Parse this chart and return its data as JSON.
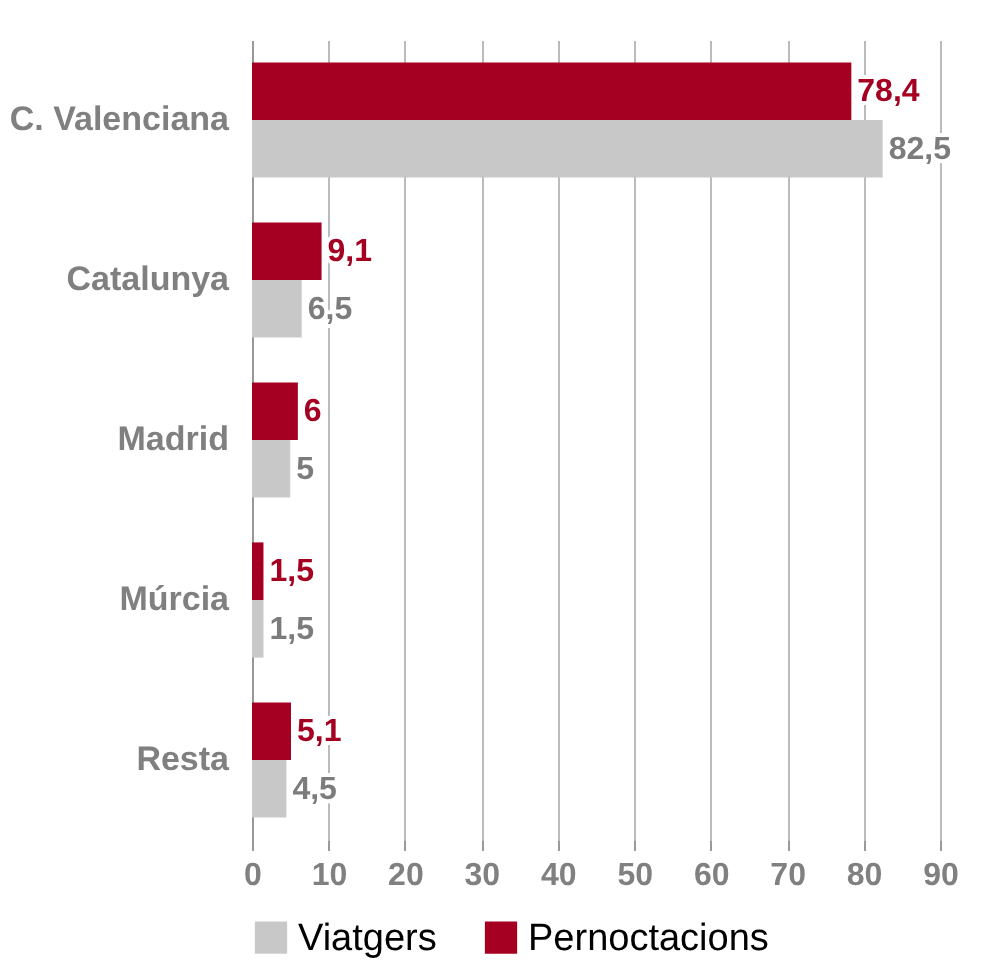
{
  "chart_data": {
    "type": "bar",
    "orientation": "horizontal",
    "categories": [
      "C. Valenciana",
      "Catalunya",
      "Madrid",
      "Múrcia",
      "Resta"
    ],
    "series": [
      {
        "name": "Viatgers",
        "color": "#c8c8c8",
        "values": [
          82.5,
          6.5,
          5,
          1.5,
          4.5
        ],
        "value_labels": [
          "82,5",
          "6,5",
          "5",
          "1,5",
          "4,5"
        ]
      },
      {
        "name": "Pernoctacions",
        "color": "#a50021",
        "values": [
          78.4,
          9.1,
          6,
          1.5,
          5.1
        ],
        "value_labels": [
          "78,4",
          "9,1",
          "6",
          "1,5",
          "5,1"
        ]
      }
    ],
    "xlim": [
      0,
      90
    ],
    "xticks": [
      0,
      10,
      20,
      30,
      40,
      50,
      60,
      70,
      80,
      90
    ],
    "grid": "x",
    "legend": "bottom"
  }
}
